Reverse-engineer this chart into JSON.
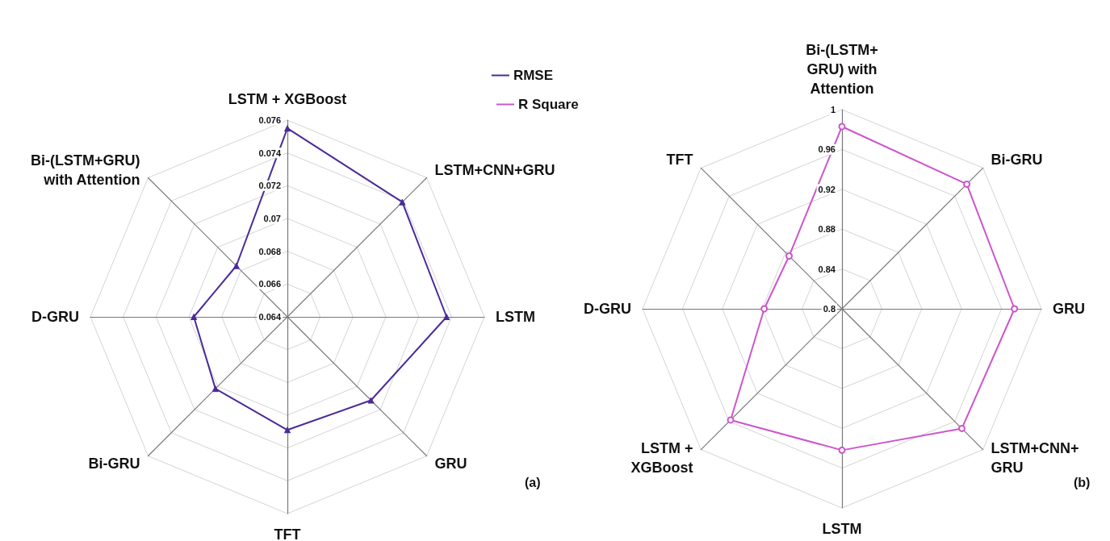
{
  "chart_data": [
    {
      "type": "radar",
      "categories": [
        "LSTM + XGBoost",
        "LSTM+CNN+GRU",
        "LSTM",
        "GRU",
        "TFT",
        "Bi-GRU",
        "D-GRU",
        "Bi-(LSTM+GRU) with Attention"
      ],
      "series": [
        {
          "name": "RMSE",
          "color": "#4b2a9a",
          "marker": "triangle",
          "values": [
            0.0755,
            0.0739,
            0.0737,
            0.0712,
            0.0709,
            0.0702,
            0.0697,
            0.0684
          ]
        }
      ],
      "ylim": [
        0.064,
        0.076
      ],
      "yticks": [
        0.064,
        0.066,
        0.068,
        0.07,
        0.072,
        0.074,
        0.076
      ],
      "legend": "top right",
      "annotations": [
        "(a)"
      ]
    },
    {
      "type": "radar",
      "categories": [
        "Bi-(LSTM+GRU) with Attention",
        "Bi-GRU",
        "GRU",
        "LSTM+CNN+GRU",
        "LSTM",
        "LSTM + XGBoost",
        "D-GRU",
        "TFT"
      ],
      "series": [
        {
          "name": "R Square",
          "color": "#cc55cc",
          "marker": "circle",
          "values": [
            0.983,
            0.977,
            0.973,
            0.97,
            0.942,
            0.958,
            0.878,
            0.875
          ]
        }
      ],
      "ylim": [
        0.8,
        1
      ],
      "yticks": [
        0.8,
        0.84,
        0.88,
        0.92,
        0.96,
        1
      ],
      "legend": "top left",
      "annotations": [
        "(b)"
      ]
    }
  ]
}
